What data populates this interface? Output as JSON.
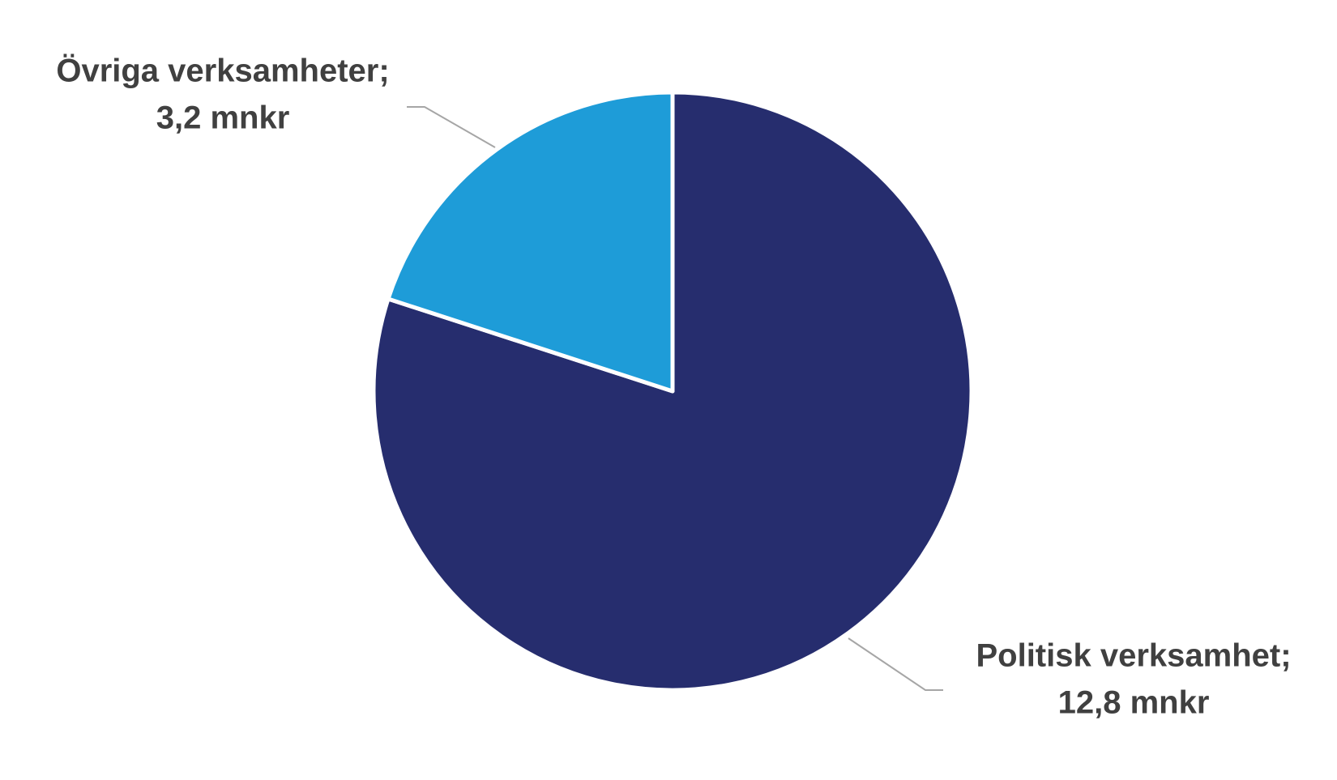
{
  "chart_data": {
    "type": "pie",
    "categories": [
      "Politisk verksamhet;",
      "Övriga verksamheter;"
    ],
    "values": [
      12.8,
      3.2
    ],
    "value_labels": [
      "12,8 mnkr",
      "3,2 mnkr"
    ],
    "colors": [
      "#262d6e",
      "#1e9cd8"
    ]
  }
}
